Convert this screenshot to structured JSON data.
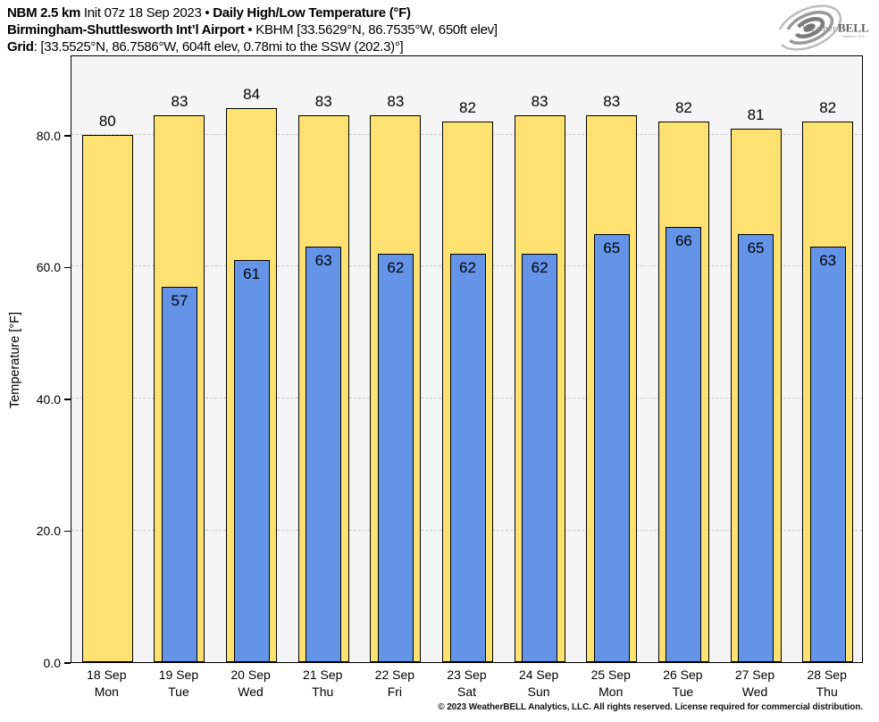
{
  "header": {
    "l1_model": "NBM 2.5 km",
    "l1_init": " Init 07z 18 Sep 2023 • ",
    "l1_title": "Daily High/Low Temperature (°F)",
    "l2_station": "Birmingham-Shuttlesworth Int’l Airport",
    "l2_rest": " • KBHM [33.5629°N, 86.7535°W, 650ft elev]",
    "l3_label": "Grid",
    "l3_rest": ": [33.5525°N, 86.7586°W, 604ft elev, 0.78mi to the SSW (202.3)°]"
  },
  "logo": {
    "name1": "Weather",
    "name2": "BELL",
    "sub": "Analytics LLC"
  },
  "chart_data": {
    "type": "bar",
    "title": "Daily High/Low Temperature (°F)",
    "ylabel": "Temperature [°F]",
    "ylim": [
      0,
      92.2
    ],
    "yticks": [
      0,
      20,
      40,
      60,
      80
    ],
    "ytick_labels": [
      "0.0",
      "20.0",
      "40.0",
      "60.0",
      "80.0"
    ],
    "categories": [
      "18 Sep",
      "19 Sep",
      "20 Sep",
      "21 Sep",
      "22 Sep",
      "23 Sep",
      "24 Sep",
      "25 Sep",
      "26 Sep",
      "27 Sep",
      "28 Sep"
    ],
    "weekdays": [
      "Mon",
      "Tue",
      "Wed",
      "Thu",
      "Fri",
      "Sat",
      "Sun",
      "Mon",
      "Tue",
      "Wed",
      "Thu"
    ],
    "series": [
      {
        "name": "High",
        "color": "#fde271",
        "values": [
          80,
          83,
          84,
          83,
          83,
          82,
          83,
          83,
          82,
          81,
          82
        ]
      },
      {
        "name": "Low",
        "color": "#6494e8",
        "values": [
          null,
          57,
          61,
          63,
          62,
          62,
          62,
          65,
          66,
          65,
          63
        ]
      }
    ],
    "grid": "horizontal dash-dot at yticks",
    "grid_color": "#cccccc",
    "plot_bg": "#f5f5f5",
    "bar_border": "#000000",
    "legend": "none"
  },
  "footer": {
    "text": "© 2023 WeatherBELL Analytics, LLC. All rights reserved. License required for commercial distribution."
  }
}
